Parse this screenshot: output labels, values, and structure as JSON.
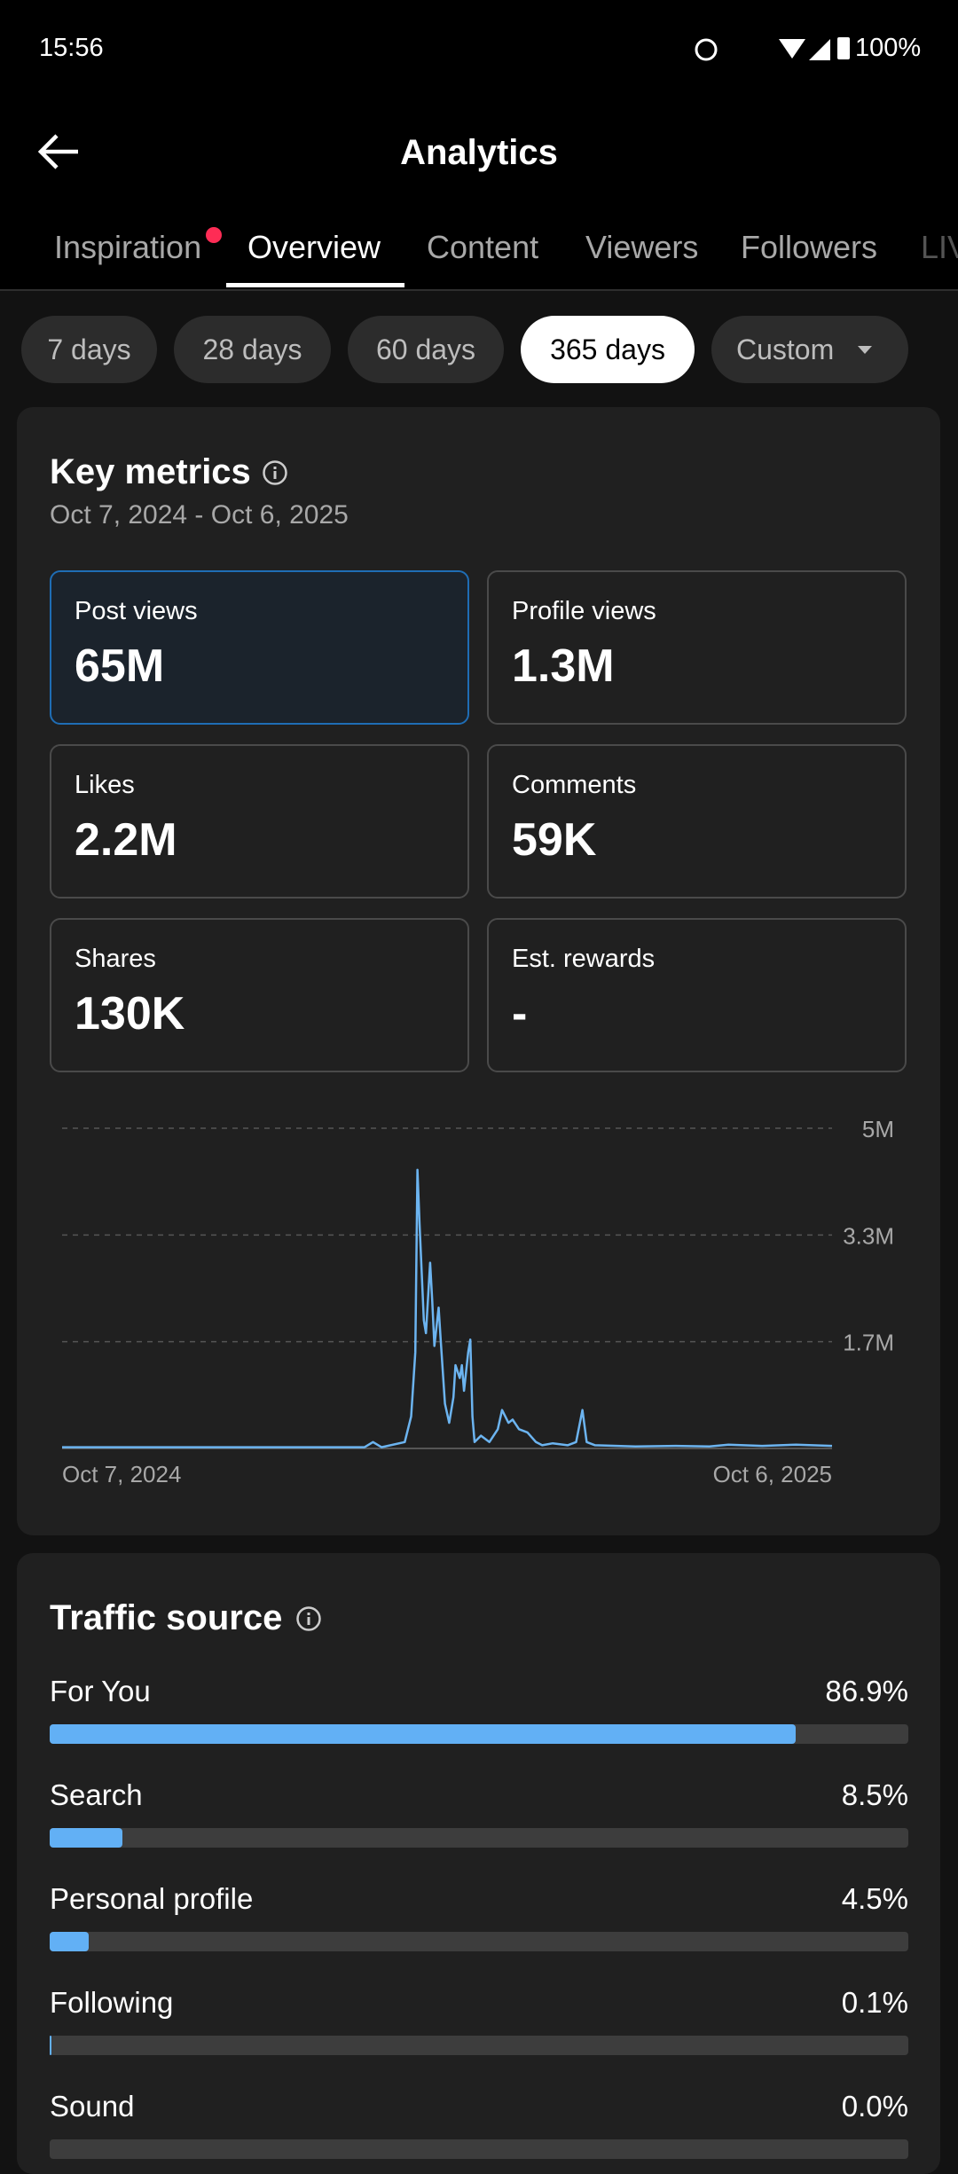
{
  "status_bar": {
    "time": "15:56",
    "battery": "100%"
  },
  "header": {
    "title": "Analytics"
  },
  "tabs": [
    "Inspiration",
    "Overview",
    "Content",
    "Viewers",
    "Followers",
    "LIVE"
  ],
  "active_tab": 1,
  "ranges": [
    "7 days",
    "28 days",
    "60 days",
    "365 days",
    "Custom"
  ],
  "active_range": 3,
  "key_metrics": {
    "title": "Key metrics",
    "date_range": "Oct 7, 2024 - Oct 6, 2025",
    "active_metric": 0,
    "metrics": [
      {
        "label": "Post views",
        "value": "65M"
      },
      {
        "label": "Profile views",
        "value": "1.3M"
      },
      {
        "label": "Likes",
        "value": "2.2M"
      },
      {
        "label": "Comments",
        "value": "59K"
      },
      {
        "label": "Shares",
        "value": "130K"
      },
      {
        "label": "Est. rewards",
        "value": "-"
      }
    ],
    "chart": {
      "type": "line",
      "color": "#6cb4f0",
      "x": [
        0,
        66,
        143,
        147,
        151,
        162,
        165,
        167,
        168,
        169,
        171,
        172,
        174,
        175,
        176,
        178,
        179,
        180,
        181,
        183,
        185,
        186,
        188,
        189,
        190,
        192,
        193,
        194,
        195,
        198,
        202,
        206,
        208,
        211,
        213,
        216,
        220,
        224,
        227,
        232,
        239,
        243,
        246,
        248,
        252,
        271,
        290,
        306,
        315,
        331,
        347,
        364
      ],
      "values": [
        20000,
        20000,
        20000,
        100000,
        20000,
        100000,
        500000,
        1500000,
        4350000,
        3500000,
        2000000,
        1800000,
        2900000,
        2300000,
        1600000,
        2200000,
        1700000,
        1200000,
        700000,
        400000,
        800000,
        1300000,
        1100000,
        1300000,
        900000,
        1500000,
        1700000,
        500000,
        100000,
        200000,
        100000,
        300000,
        600000,
        400000,
        450000,
        300000,
        250000,
        100000,
        50000,
        80000,
        50000,
        100000,
        600000,
        100000,
        50000,
        30000,
        40000,
        30000,
        60000,
        40000,
        60000,
        40000
      ],
      "xlim": [
        0,
        364
      ],
      "ylim": [
        0,
        5000000
      ],
      "yticks": [
        {
          "value": 1666667,
          "label": "1.7M"
        },
        {
          "value": 3333333,
          "label": "3.3M"
        },
        {
          "value": 5000000,
          "label": "5M"
        }
      ],
      "xticks": [
        {
          "value": 0,
          "label": "Oct 7, 2024"
        },
        {
          "value": 364,
          "label": "Oct 6, 2025"
        }
      ],
      "grid": true
    }
  },
  "traffic_source": {
    "title": "Traffic source",
    "xlim": [
      0,
      100
    ],
    "items": [
      {
        "name": "For You",
        "value": 86.9,
        "label": "86.9%"
      },
      {
        "name": "Search",
        "value": 8.5,
        "label": "8.5%"
      },
      {
        "name": "Personal profile",
        "value": 4.5,
        "label": "4.5%"
      },
      {
        "name": "Following",
        "value": 0.1,
        "label": "0.1%"
      },
      {
        "name": "Sound",
        "value": 0.0,
        "label": "0.0%"
      }
    ]
  }
}
